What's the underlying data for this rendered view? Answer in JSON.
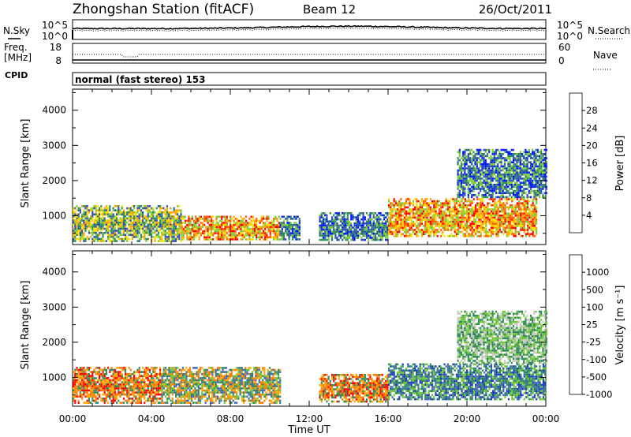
{
  "header": {
    "station": "Zhongshan Station (fitACF)",
    "beam": "Beam 12",
    "date": "26/Oct/2011"
  },
  "strips": {
    "nsky_label": "N.Sky",
    "nsky_ticks": [
      "10^5",
      "10^0"
    ],
    "nsearch_ticks": [
      "10^5",
      "10^0"
    ],
    "nsearch_label": "N.Search",
    "freq_label_1": "Freq.",
    "freq_label_2": "[MHz]",
    "freq_ticks": [
      "18",
      "8"
    ],
    "nave_ticks": [
      "60",
      "0"
    ],
    "nave_label": "Nave",
    "cpid_label": "CPID",
    "cpid_text": "normal (fast stereo) 153"
  },
  "chart_data": [
    {
      "type": "heatmap",
      "title": "",
      "xlabel": "Time UT",
      "ylabel": "Slant Range [km]",
      "xlim": [
        "00:00",
        "24:00"
      ],
      "x_ticks": [
        "00:00",
        "04:00",
        "08:00",
        "12:00",
        "16:00",
        "20:00",
        "00:00"
      ],
      "ylim": [
        180,
        4600
      ],
      "y_ticks": [
        1000,
        2000,
        3000,
        4000
      ],
      "colorbar": {
        "label": "Power [dB]",
        "ticks": [
          "28",
          "24",
          "20",
          "16",
          "12",
          "8",
          "4"
        ],
        "range": [
          0,
          30
        ],
        "colors": [
          "#0018ff",
          "#2d4fb5",
          "#2f8a5a",
          "#7ecb3a",
          "#f6e000",
          "#ffa600",
          "#ff5a00",
          "#ff0000"
        ]
      },
      "echo_regions": [
        {
          "time": [
            0.0,
            5.5
          ],
          "range": [
            300,
            1300
          ],
          "level": "medium"
        },
        {
          "time": [
            5.5,
            10.5
          ],
          "range": [
            300,
            1000
          ],
          "level": "high"
        },
        {
          "time": [
            10.5,
            11.5
          ],
          "range": [
            300,
            1000
          ],
          "level": "low"
        },
        {
          "time": [
            12.5,
            16.0
          ],
          "range": [
            300,
            1100
          ],
          "level": "low"
        },
        {
          "time": [
            16.0,
            23.5
          ],
          "range": [
            400,
            1500
          ],
          "level": "high"
        },
        {
          "time": [
            19.5,
            24.0
          ],
          "range": [
            1500,
            2900
          ],
          "level": "low"
        }
      ]
    },
    {
      "type": "heatmap",
      "title": "",
      "xlabel": "Time UT",
      "ylabel": "Slant Range [km]",
      "xlim": [
        "00:00",
        "24:00"
      ],
      "x_ticks": [
        "00:00",
        "04:00",
        "08:00",
        "12:00",
        "16:00",
        "20:00",
        "00:00"
      ],
      "ylim": [
        180,
        4600
      ],
      "y_ticks": [
        1000,
        2000,
        3000,
        4000
      ],
      "colorbar": {
        "label": "Velocity [m s⁻¹]",
        "ticks": [
          "1000",
          "500",
          "100",
          "25",
          "-25",
          "-100",
          "-500",
          "-1000"
        ],
        "range": [
          -1200,
          1200
        ],
        "colors": [
          "#1d3fb8",
          "#3f6fb0",
          "#2f8a5a",
          "#6fc63a",
          "#c8c8c0",
          "#ffa600",
          "#ff7a00",
          "#ff0000"
        ]
      },
      "echo_regions": [
        {
          "time": [
            0.0,
            4.5
          ],
          "range": [
            300,
            1300
          ],
          "level": "negative"
        },
        {
          "time": [
            4.5,
            10.5
          ],
          "range": [
            300,
            1300
          ],
          "level": "mixed"
        },
        {
          "time": [
            12.5,
            16.0
          ],
          "range": [
            300,
            1100
          ],
          "level": "negative"
        },
        {
          "time": [
            16.0,
            24.0
          ],
          "range": [
            400,
            1400
          ],
          "level": "positive"
        },
        {
          "time": [
            19.5,
            24.0
          ],
          "range": [
            1400,
            2900
          ],
          "level": "near-zero"
        }
      ]
    }
  ]
}
